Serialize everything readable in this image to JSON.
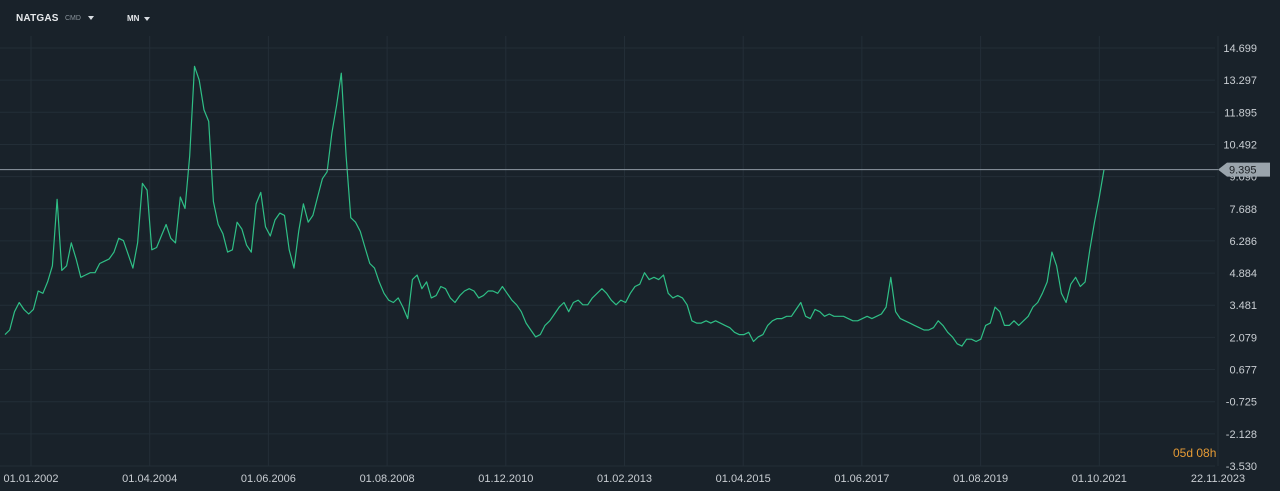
{
  "toolbar": {
    "symbol": "NATGAS",
    "symbol_type": "CMD",
    "timeframe": "MN"
  },
  "price_marker": {
    "label": "9.395"
  },
  "countdown": "05d 08h",
  "colors": {
    "background": "#19222a",
    "line": "#2fbf86",
    "grid": "#232e37",
    "axis_text": "#c9ced3",
    "price_line": "#8f9aa3",
    "price_tag_bg": "#9aa4ac",
    "countdown": "#e69b35"
  },
  "chart_data": {
    "type": "line",
    "title": "",
    "xlabel": "",
    "ylabel": "",
    "ylim": [
      -3.53,
      14.699
    ],
    "x_tick_labels": [
      "01.01.2002",
      "01.04.2004",
      "01.06.2006",
      "01.08.2008",
      "01.12.2010",
      "01.02.2013",
      "01.04.2015",
      "01.06.2017",
      "01.08.2019",
      "01.10.2021",
      "22.11.2023"
    ],
    "y_tick_labels": [
      "14.699",
      "13.297",
      "11.895",
      "10.492",
      "9.090",
      "7.688",
      "6.286",
      "4.884",
      "3.481",
      "2.079",
      "0.677",
      "-0.725",
      "-2.128",
      "-3.530"
    ],
    "last_value": 9.395,
    "grid": true,
    "series": [
      {
        "values": [
          2.2,
          2.4,
          3.2,
          3.6,
          3.3,
          3.1,
          3.3,
          4.1,
          4.0,
          4.5,
          5.2,
          8.1,
          5.0,
          5.2,
          6.2,
          5.5,
          4.7,
          4.8,
          4.9,
          4.9,
          5.3,
          5.4,
          5.5,
          5.8,
          6.4,
          6.3,
          5.7,
          5.1,
          6.2,
          8.8,
          8.5,
          5.9,
          6.0,
          6.5,
          7.0,
          6.4,
          6.2,
          8.2,
          7.7,
          10.0,
          13.9,
          13.3,
          12.0,
          11.5,
          8.0,
          7.0,
          6.6,
          5.8,
          5.9,
          7.1,
          6.8,
          6.1,
          5.8,
          7.9,
          8.4,
          6.9,
          6.5,
          7.2,
          7.5,
          7.4,
          5.9,
          5.1,
          6.7,
          7.9,
          7.1,
          7.4,
          8.2,
          9.0,
          9.3,
          11.0,
          12.2,
          13.6,
          10.0,
          7.3,
          7.1,
          6.7,
          6.0,
          5.3,
          5.1,
          4.5,
          4.0,
          3.7,
          3.6,
          3.8,
          3.4,
          2.9,
          4.6,
          4.8,
          4.2,
          4.5,
          3.8,
          3.9,
          4.3,
          4.2,
          3.8,
          3.6,
          3.9,
          4.1,
          4.2,
          4.1,
          3.8,
          3.9,
          4.1,
          4.1,
          4.0,
          4.3,
          4.0,
          3.7,
          3.5,
          3.2,
          2.7,
          2.4,
          2.1,
          2.2,
          2.6,
          2.8,
          3.1,
          3.4,
          3.6,
          3.2,
          3.6,
          3.7,
          3.5,
          3.5,
          3.8,
          4.0,
          4.2,
          4.0,
          3.7,
          3.5,
          3.7,
          3.6,
          4.0,
          4.3,
          4.4,
          4.9,
          4.6,
          4.7,
          4.6,
          4.8,
          4.0,
          3.8,
          3.9,
          3.8,
          3.5,
          2.8,
          2.7,
          2.7,
          2.8,
          2.7,
          2.8,
          2.7,
          2.6,
          2.5,
          2.3,
          2.2,
          2.2,
          2.3,
          1.9,
          2.1,
          2.2,
          2.6,
          2.8,
          2.9,
          2.9,
          3.0,
          3.0,
          3.3,
          3.6,
          3.0,
          2.9,
          3.3,
          3.2,
          3.0,
          3.1,
          3.0,
          3.0,
          3.0,
          2.9,
          2.8,
          2.8,
          2.9,
          3.0,
          2.9,
          3.0,
          3.1,
          3.4,
          4.7,
          3.2,
          2.9,
          2.8,
          2.7,
          2.6,
          2.5,
          2.4,
          2.4,
          2.5,
          2.8,
          2.6,
          2.3,
          2.1,
          1.8,
          1.7,
          2.0,
          2.0,
          1.9,
          2.0,
          2.6,
          2.7,
          3.4,
          3.2,
          2.6,
          2.6,
          2.8,
          2.6,
          2.8,
          3.0,
          3.4,
          3.6,
          4.0,
          4.5,
          5.8,
          5.2,
          4.0,
          3.6,
          4.4,
          4.7,
          4.3,
          4.5,
          5.9,
          7.1,
          8.2,
          9.395
        ]
      }
    ]
  }
}
